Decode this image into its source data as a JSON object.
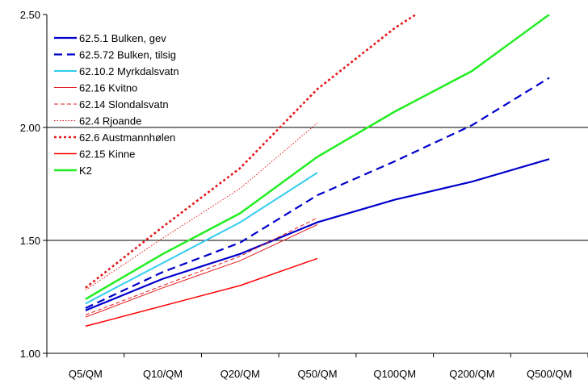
{
  "chart_data": {
    "type": "line",
    "categories": [
      "Q5/QM",
      "Q10/QM",
      "Q20/QM",
      "Q50/QM",
      "Q100QM",
      "Q200/QM",
      "Q500/QM"
    ],
    "ylim": [
      1.0,
      2.5
    ],
    "yticks": [
      "1.00",
      "1.50",
      "2.00",
      "2.50"
    ],
    "grid": "horizontal at 1.50 and 2.00",
    "legend_position": "top-left",
    "series": [
      {
        "name": "62.5.1 Bulken, gev",
        "color": "#0000cc",
        "dash": "solid",
        "width": 2.2,
        "values": [
          1.19,
          1.33,
          1.44,
          1.58,
          1.68,
          1.76,
          1.86
        ]
      },
      {
        "name": "62.5.72 Bulken, tilsig",
        "color": "#0000cc",
        "dash": "long",
        "width": 2.2,
        "values": [
          1.2,
          1.36,
          1.49,
          1.7,
          1.85,
          2.01,
          2.22
        ]
      },
      {
        "name": "62.10.2 Myrkdalsvatn",
        "color": "#33ccee",
        "dash": "solid",
        "width": 2,
        "values": [
          1.22,
          1.4,
          1.58,
          1.8,
          null,
          null,
          null
        ]
      },
      {
        "name": "62.16 Kvitno",
        "color": "#e31a1c",
        "dash": "solid",
        "width": 1,
        "values": [
          1.16,
          1.29,
          1.41,
          1.57,
          null,
          null,
          null
        ]
      },
      {
        "name": "62.14 Slondalsvatn",
        "color": "#e31a1c",
        "dash": "medium",
        "width": 1,
        "values": [
          1.17,
          1.3,
          1.43,
          1.6,
          null,
          null,
          null
        ]
      },
      {
        "name": "62.4 Rjoande",
        "color": "#e31a1c",
        "dash": "dotted",
        "width": 1,
        "values": [
          1.28,
          1.51,
          1.73,
          2.02,
          null,
          null,
          null
        ]
      },
      {
        "name": "62.6 Austmannhølen",
        "color": "#e31a1c",
        "dash": "dotted-thick",
        "width": 2.6,
        "values": [
          1.29,
          1.56,
          1.82,
          2.17,
          2.44,
          2.66,
          null
        ]
      },
      {
        "name": "62.15 Kinne",
        "color": "#ff0000",
        "dash": "solid",
        "width": 1.5,
        "values": [
          1.12,
          1.21,
          1.3,
          1.42,
          null,
          null,
          null
        ]
      },
      {
        "name": "K2",
        "color": "#22ee22",
        "dash": "solid",
        "width": 2.5,
        "values": [
          1.24,
          1.44,
          1.62,
          1.87,
          2.07,
          2.25,
          2.5
        ]
      }
    ]
  }
}
